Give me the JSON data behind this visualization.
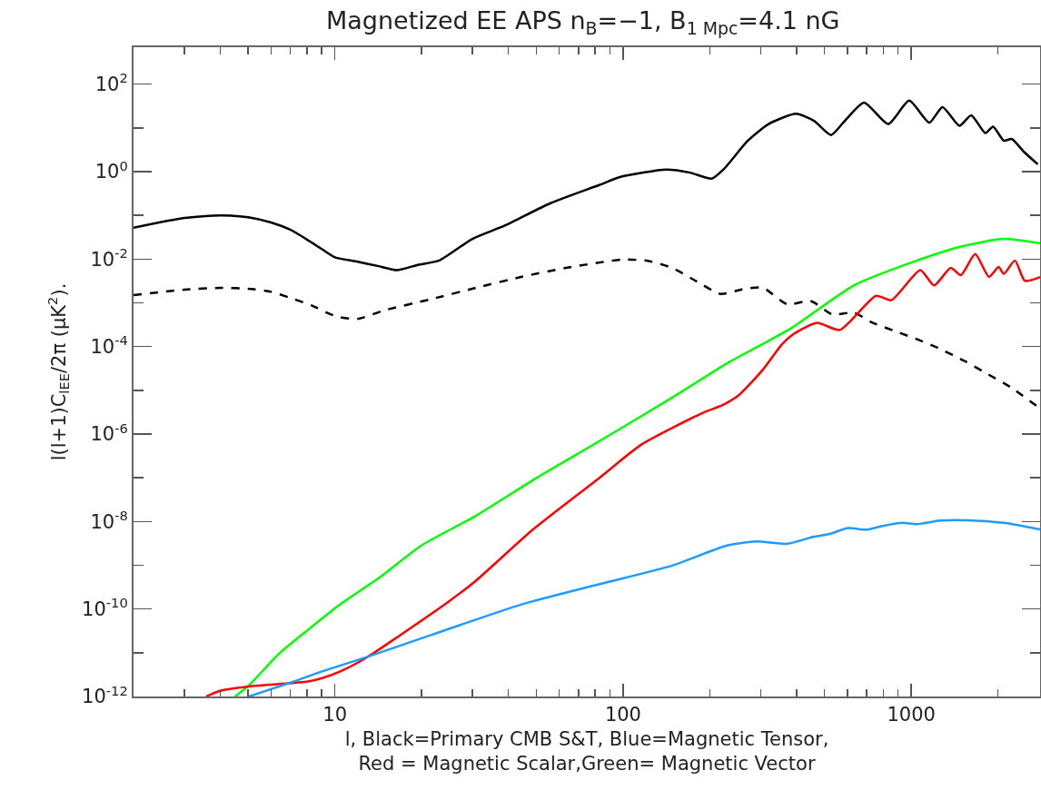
{
  "chart_data": {
    "type": "line",
    "title": "Magnetized EE APS n$_{B}$=−1, B$_{1 Mpc}$=4.1 nG",
    "xlabel": "l, Black=Primary CMB S&T, Blue=Magnetic Tensor,\nRed = Magnetic Scalar,Green= Magnetic Vector",
    "ylabel": "l(l+1)C$_{lEE}$/2π (μK$^{2}$).",
    "log": "xy",
    "grid": false,
    "marker": "none",
    "xlim": [
      2,
      2800
    ],
    "ylim": [
      1e-12,
      700
    ],
    "xticks": [
      {
        "value": 3,
        "label": null
      },
      {
        "value": 4,
        "label": null
      },
      {
        "value": 5,
        "label": null
      },
      {
        "value": 6,
        "label": null
      },
      {
        "value": 7,
        "label": null
      },
      {
        "value": 8,
        "label": null
      },
      {
        "value": 9,
        "label": null
      },
      10,
      {
        "value": 20,
        "label": null
      },
      {
        "value": 30,
        "label": null
      },
      {
        "value": 40,
        "label": null
      },
      {
        "value": 50,
        "label": null
      },
      {
        "value": 60,
        "label": null
      },
      {
        "value": 70,
        "label": null
      },
      {
        "value": 80,
        "label": null
      },
      {
        "value": 90,
        "label": null
      },
      100,
      {
        "value": 200,
        "label": null
      },
      {
        "value": 300,
        "label": null
      },
      {
        "value": 400,
        "label": null
      },
      {
        "value": 500,
        "label": null
      },
      {
        "value": 600,
        "label": null
      },
      {
        "value": 700,
        "label": null
      },
      {
        "value": 800,
        "label": null
      },
      {
        "value": 900,
        "label": null
      },
      1000,
      {
        "value": 2000,
        "label": null
      }
    ],
    "yticks": [
      {
        "value": 1e-12,
        "label": "10$^{-12}$"
      },
      {
        "value": 1e-11,
        "label": null
      },
      {
        "value": 1e-10,
        "label": "10$^{-10}$"
      },
      {
        "value": 1e-09,
        "label": null
      },
      {
        "value": 1e-08,
        "label": "10$^{-8}$"
      },
      {
        "value": 1e-07,
        "label": null
      },
      {
        "value": 1e-06,
        "label": "10$^{-6}$"
      },
      {
        "value": 1e-05,
        "label": null
      },
      {
        "value": 0.0001,
        "label": "10$^{-4}$"
      },
      {
        "value": 0.001,
        "label": null
      },
      {
        "value": 0.01,
        "label": "10$^{-2}$"
      },
      {
        "value": 0.1,
        "label": null
      },
      {
        "value": 1,
        "label": "10$^{0}$"
      },
      {
        "value": 10,
        "label": null
      },
      {
        "value": 100,
        "label": "10$^{2}$"
      }
    ],
    "series": [
      {
        "color": "#000000",
        "line_style": "solid",
        "x": [
          2,
          3,
          4,
          5,
          6,
          7,
          8,
          9,
          10,
          12,
          14.2,
          16.4,
          19.4,
          23,
          30,
          39,
          56,
          83,
          98,
          141,
          171,
          203,
          223,
          271,
          320,
          398,
          460,
          527,
          588,
          686,
          832,
          984,
          1155,
          1284,
          1470,
          1615,
          1808,
          1923,
          2096,
          2231,
          2466,
          2748
        ],
        "values": [
          0.052,
          0.087,
          0.1,
          0.091,
          0.069,
          0.047,
          0.028,
          0.017,
          0.011,
          0.0087,
          0.0069,
          0.0056,
          0.0074,
          0.0093,
          0.029,
          0.059,
          0.19,
          0.5,
          0.76,
          1.12,
          0.95,
          0.69,
          1.12,
          5.1,
          12.3,
          21,
          14.5,
          6.9,
          14.5,
          38,
          12.3,
          42,
          13.2,
          30,
          11.2,
          19.5,
          7.6,
          10.7,
          5.1,
          5.6,
          2.8,
          1.48
        ]
      },
      {
        "color": "#000000",
        "line_style": "dashed",
        "x": [
          2,
          3,
          4,
          5,
          6,
          7,
          8.3,
          10.1,
          12,
          14.9,
          21.4,
          30.8,
          44.2,
          63.4,
          100,
          122,
          148,
          180,
          218,
          264,
          306,
          371,
          448,
          533,
          632,
          728,
          888,
          1068,
          1238,
          1540,
          1831,
          2202,
          2748
        ],
        "values": [
          0.0015,
          0.002,
          0.0022,
          0.0021,
          0.0018,
          0.0013,
          0.00087,
          0.00049,
          0.00043,
          0.00068,
          0.0012,
          0.0022,
          0.0039,
          0.0063,
          0.0098,
          0.0091,
          0.0063,
          0.0031,
          0.0016,
          0.0021,
          0.0022,
          0.00093,
          0.0011,
          0.00054,
          0.0006,
          0.00036,
          0.00022,
          0.00014,
          9.3e-05,
          4.6e-05,
          2.4e-05,
          1.2e-05,
          4.2e-06
        ]
      },
      {
        "color": "#00ff00",
        "line_style": "solid",
        "x": [
          4.5,
          5.03,
          6.4,
          8.14,
          10.4,
          14.2,
          19.9,
          30.8,
          49.9,
          82.8,
          148,
          233,
          302,
          389,
          632,
          1047,
          1470,
          2096,
          2800
        ],
        "values": [
          1e-12,
          1.8e-12,
          9.5e-12,
          3.5e-11,
          1.26e-10,
          5.1e-10,
          2.8e-09,
          1.35e-08,
          9.8e-08,
          6.9e-07,
          6.8e-06,
          4.4e-05,
          0.00011,
          0.00028,
          0.0025,
          0.0093,
          0.019,
          0.029,
          0.023
        ]
      },
      {
        "color": "#ff0000",
        "line_style": "solid",
        "x": [
          3.58,
          4,
          5.03,
          6.88,
          8.07,
          8.97,
          10.4,
          12.9,
          16.8,
          24.7,
          30.8,
          48.7,
          82.8,
          116,
          188,
          223,
          253,
          306,
          355,
          389,
          471,
          565,
          755,
          853,
          1075,
          1200,
          1371,
          1487,
          1667,
          1862,
          2010,
          2096,
          2290,
          2478,
          2800
        ],
        "values": [
          1e-12,
          1.35e-12,
          1.7e-12,
          2e-12,
          2.2e-12,
          2.6e-12,
          3.7e-12,
          7.8e-12,
          2.5e-11,
          1.45e-10,
          4.4e-10,
          6.6e-09,
          1e-07,
          5.8e-07,
          3e-06,
          4.7e-06,
          7.9e-06,
          3e-05,
          0.00011,
          0.00019,
          0.00035,
          0.00024,
          0.00145,
          0.00115,
          0.0056,
          0.0025,
          0.0063,
          0.0043,
          0.013,
          0.0039,
          0.0066,
          0.0046,
          0.0093,
          0.0032,
          0.0039
        ]
      },
      {
        "color": "#1e9bff",
        "line_style": "solid",
        "x": [
          5.03,
          7.05,
          8.97,
          12.6,
          21.4,
          44.2,
          82.8,
          148,
          228,
          290,
          371,
          460,
          521,
          604,
          697,
          788,
          932,
          1047,
          1255,
          1569,
          2096,
          2800
        ],
        "values": [
          1e-12,
          2.1e-12,
          3.7e-12,
          7.6e-12,
          2.5e-11,
          1.26e-10,
          3.7e-10,
          9.8e-10,
          2.8e-09,
          3.5e-09,
          3.1e-09,
          4.5e-09,
          5.2e-09,
          7.1e-09,
          6.5e-09,
          7.8e-09,
          9.3e-09,
          8.7e-09,
          1.05e-08,
          1.07e-08,
          9.3e-09,
          6.6e-09
        ]
      }
    ]
  }
}
